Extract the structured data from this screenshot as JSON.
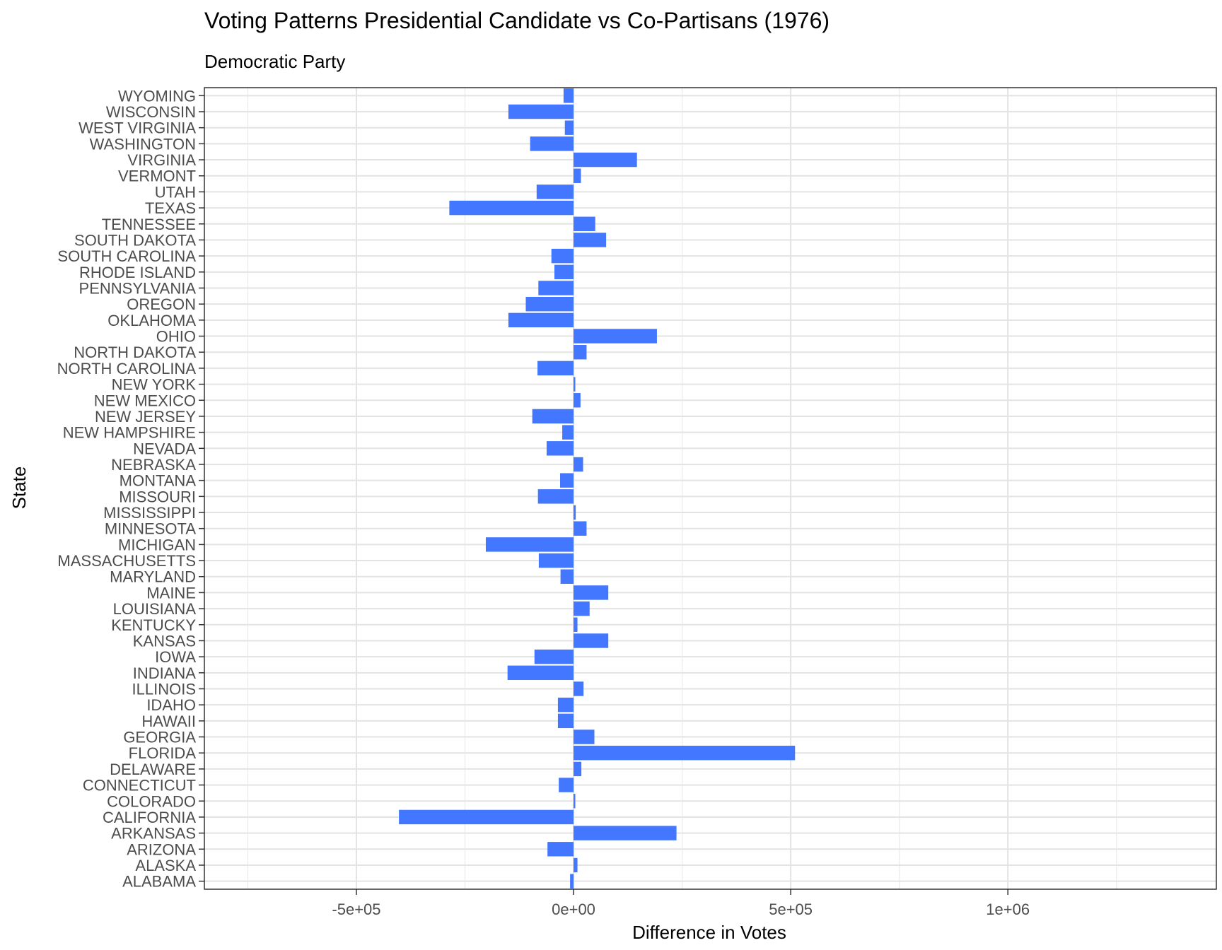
{
  "chart_data": {
    "type": "bar",
    "orientation": "horizontal",
    "title": "Voting Patterns Presidential Candidate vs Co-Partisans (1976)",
    "subtitle": "Democratic Party",
    "xlabel": "Difference in Votes",
    "ylabel": "State",
    "xlim": [
      -850000,
      1480000
    ],
    "x_ticks": [
      -500000,
      0,
      500000,
      1000000
    ],
    "x_tick_labels": [
      "-5e+05",
      "0e+00",
      "5e+05",
      "1e+06"
    ],
    "grid": true,
    "bar_color": "#4477ff",
    "categories": [
      "ALABAMA",
      "ALASKA",
      "ARIZONA",
      "ARKANSAS",
      "CALIFORNIA",
      "COLORADO",
      "CONNECTICUT",
      "DELAWARE",
      "FLORIDA",
      "GEORGIA",
      "HAWAII",
      "IDAHO",
      "ILLINOIS",
      "INDIANA",
      "IOWA",
      "KANSAS",
      "KENTUCKY",
      "LOUISIANA",
      "MAINE",
      "MARYLAND",
      "MASSACHUSETTS",
      "MICHIGAN",
      "MINNESOTA",
      "MISSISSIPPI",
      "MISSOURI",
      "MONTANA",
      "NEBRASKA",
      "NEVADA",
      "NEW HAMPSHIRE",
      "NEW JERSEY",
      "NEW MEXICO",
      "NEW YORK",
      "NORTH CAROLINA",
      "NORTH DAKOTA",
      "OHIO",
      "OKLAHOMA",
      "OREGON",
      "PENNSYLVANIA",
      "RHODE ISLAND",
      "SOUTH CAROLINA",
      "SOUTH DAKOTA",
      "TENNESSEE",
      "TEXAS",
      "UTAH",
      "VERMONT",
      "VIRGINIA",
      "WASHINGTON",
      "WEST VIRGINIA",
      "WISCONSIN",
      "WYOMING"
    ],
    "values": [
      -8000,
      9000,
      -60000,
      237000,
      -402000,
      4000,
      -34000,
      18000,
      510000,
      48000,
      -36000,
      -36000,
      23000,
      -152000,
      -90000,
      80000,
      9000,
      37000,
      80000,
      -30000,
      -80000,
      -202000,
      30000,
      5000,
      -82000,
      -31000,
      22000,
      -62000,
      -26000,
      -95000,
      16000,
      4000,
      -83000,
      30000,
      192000,
      -150000,
      -110000,
      -81000,
      -44000,
      -51000,
      75000,
      50000,
      -286000,
      -85000,
      17000,
      146000,
      -100000,
      -20000,
      -150000,
      -23000
    ]
  }
}
